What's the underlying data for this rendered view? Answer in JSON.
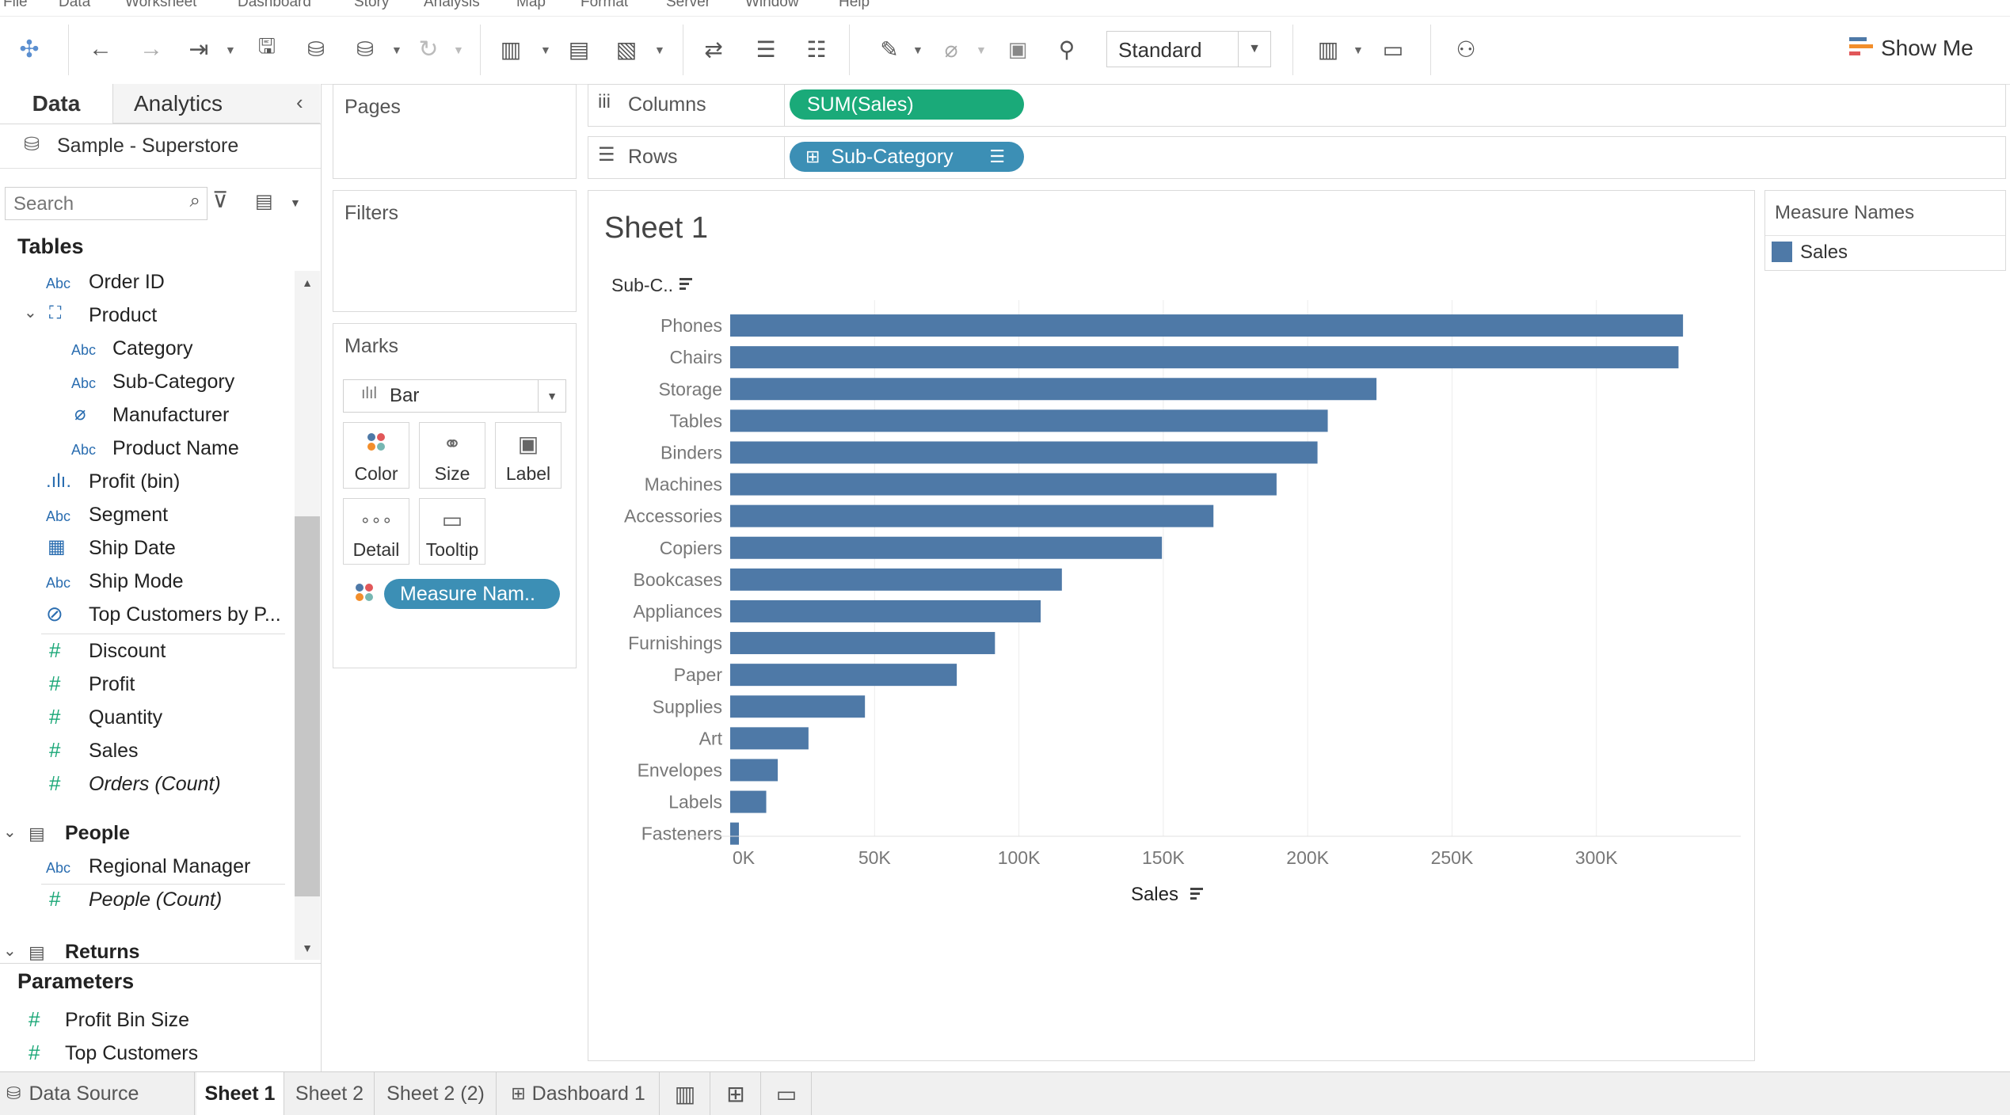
{
  "menu": [
    "File",
    "Data",
    "Worksheet",
    "Dashboard",
    "Story",
    "Analysis",
    "Map",
    "Format",
    "Server",
    "Window",
    "Help"
  ],
  "toolbar": {
    "fit": "Standard",
    "show_me": "Show Me"
  },
  "data_pane": {
    "tab_data": "Data",
    "tab_analytics": "Analytics",
    "datasource": "Sample - Superstore",
    "search_placeholder": "Search",
    "tables_title": "Tables",
    "orders_fields": [
      {
        "name": "Order ID",
        "type": "abc"
      },
      {
        "name": "Product",
        "type": "hierarchy"
      },
      {
        "name": "Category",
        "type": "abc"
      },
      {
        "name": "Sub-Category",
        "type": "abc"
      },
      {
        "name": "Manufacturer",
        "type": "clip"
      },
      {
        "name": "Product Name",
        "type": "abc"
      },
      {
        "name": "Profit (bin)",
        "type": "bin"
      },
      {
        "name": "Segment",
        "type": "abc"
      },
      {
        "name": "Ship Date",
        "type": "date"
      },
      {
        "name": "Ship Mode",
        "type": "abc"
      },
      {
        "name": "Top Customers by P...",
        "type": "set"
      },
      {
        "name": "Discount",
        "type": "measure"
      },
      {
        "name": "Profit",
        "type": "measure"
      },
      {
        "name": "Quantity",
        "type": "measure"
      },
      {
        "name": "Sales",
        "type": "measure"
      },
      {
        "name": "Orders (Count)",
        "type": "measure"
      }
    ],
    "people_title": "People",
    "people_fields": [
      {
        "name": "Regional Manager",
        "type": "abc"
      },
      {
        "name": "People (Count)",
        "type": "measure"
      }
    ],
    "returns_title": "Returns",
    "parameters_title": "Parameters",
    "parameters": [
      "Profit Bin Size",
      "Top Customers"
    ]
  },
  "cards": {
    "pages": "Pages",
    "filters": "Filters",
    "marks": "Marks",
    "mark_type": "Bar",
    "mark_buttons": [
      "Color",
      "Size",
      "Label",
      "Detail",
      "Tooltip"
    ],
    "marks_pill": "Measure Nam.."
  },
  "shelves": {
    "columns_label": "Columns",
    "columns_pill": "SUM(Sales)",
    "rows_label": "Rows",
    "rows_pill": "Sub-Category"
  },
  "sheet": {
    "title": "Sheet 1",
    "row_header": "Sub-C.."
  },
  "legend": {
    "title": "Measure Names",
    "item": "Sales",
    "color": "#4e79a7"
  },
  "chart_data": {
    "type": "bar",
    "orientation": "horizontal",
    "categories": [
      "Phones",
      "Chairs",
      "Storage",
      "Tables",
      "Binders",
      "Machines",
      "Accessories",
      "Copiers",
      "Bookcases",
      "Appliances",
      "Furnishings",
      "Paper",
      "Supplies",
      "Art",
      "Envelopes",
      "Labels",
      "Fasteners"
    ],
    "values": [
      330007,
      328449,
      223844,
      206966,
      203413,
      189239,
      167380,
      149528,
      114880,
      107532,
      91705,
      78479,
      46674,
      27119,
      16476,
      12486,
      3024
    ],
    "xlabel": "Sales",
    "xlim": [
      0,
      350000
    ],
    "xticks": [
      0,
      50000,
      100000,
      150000,
      200000,
      250000,
      300000
    ],
    "xtick_labels": [
      "0K",
      "50K",
      "100K",
      "150K",
      "200K",
      "250K",
      "300K"
    ],
    "color": "#4e79a7",
    "grid": true
  },
  "bottom_tabs": {
    "datasource": "Data Source",
    "sheets": [
      "Sheet 1",
      "Sheet 2",
      "Sheet 2 (2)",
      "Dashboard 1"
    ]
  }
}
